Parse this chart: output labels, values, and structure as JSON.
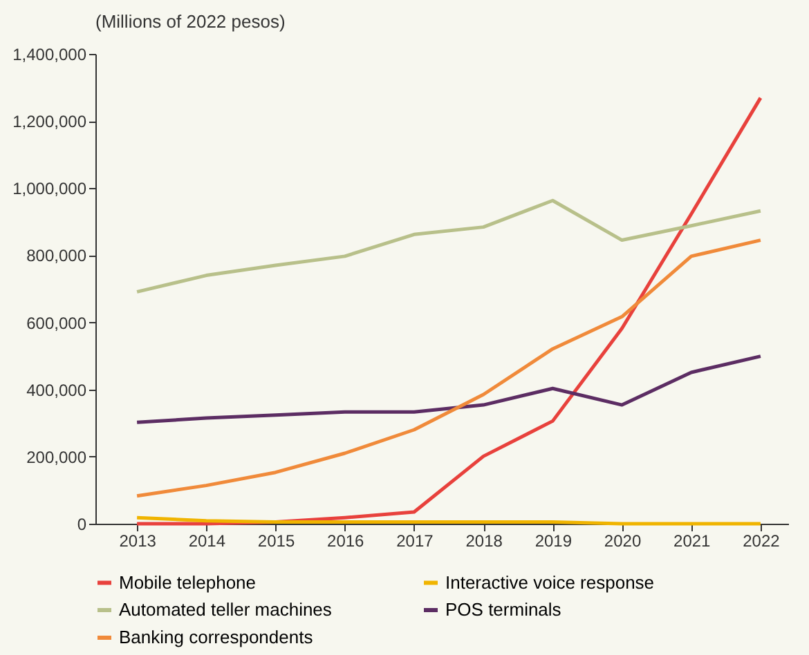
{
  "chart_data": {
    "type": "line",
    "subtitle": "(Millions of 2022 pesos)",
    "categories": [
      "2013",
      "2014",
      "2015",
      "2016",
      "2017",
      "2018",
      "2019",
      "2020",
      "2021",
      "2022"
    ],
    "series": [
      {
        "name": "Mobile telephone",
        "color": "#e8413c",
        "values": [
          0,
          0,
          5000,
          18000,
          35000,
          201000,
          306000,
          582000,
          923000,
          1269000
        ]
      },
      {
        "name": "Interactive voice response",
        "color": "#f0b400",
        "values": [
          18000,
          9000,
          5000,
          5000,
          5000,
          5000,
          5000,
          0,
          0,
          0
        ]
      },
      {
        "name": "Automated teller machines",
        "color": "#b8c08a",
        "values": [
          691000,
          740000,
          770000,
          797000,
          862000,
          884000,
          963000,
          845000,
          888000,
          932000
        ]
      },
      {
        "name": "POS terminals",
        "color": "#5c2d63",
        "values": [
          302000,
          315000,
          324000,
          333000,
          333000,
          354000,
          403000,
          354000,
          451000,
          499000
        ]
      },
      {
        "name": "Banking correspondents",
        "color": "#f08a3a",
        "values": [
          83000,
          114000,
          153000,
          210000,
          280000,
          385000,
          521000,
          617000,
          797000,
          845000
        ]
      }
    ],
    "ylim": [
      0,
      1400000
    ],
    "yticks": [
      0,
      {
        "value": 200000,
        "label": "200,000"
      },
      {
        "value": 400000,
        "label": "400,000"
      },
      {
        "value": 600000,
        "label": "600,000"
      },
      {
        "value": 800000,
        "label": "800,000"
      },
      {
        "value": 1000000,
        "label": "1,000,000"
      },
      {
        "value": 1200000,
        "label": "1,200,000"
      },
      {
        "value": 1400000,
        "label": "1,400,000"
      }
    ],
    "grid": false,
    "legend": "bottom",
    "marker": "none",
    "line_style": "solid"
  }
}
